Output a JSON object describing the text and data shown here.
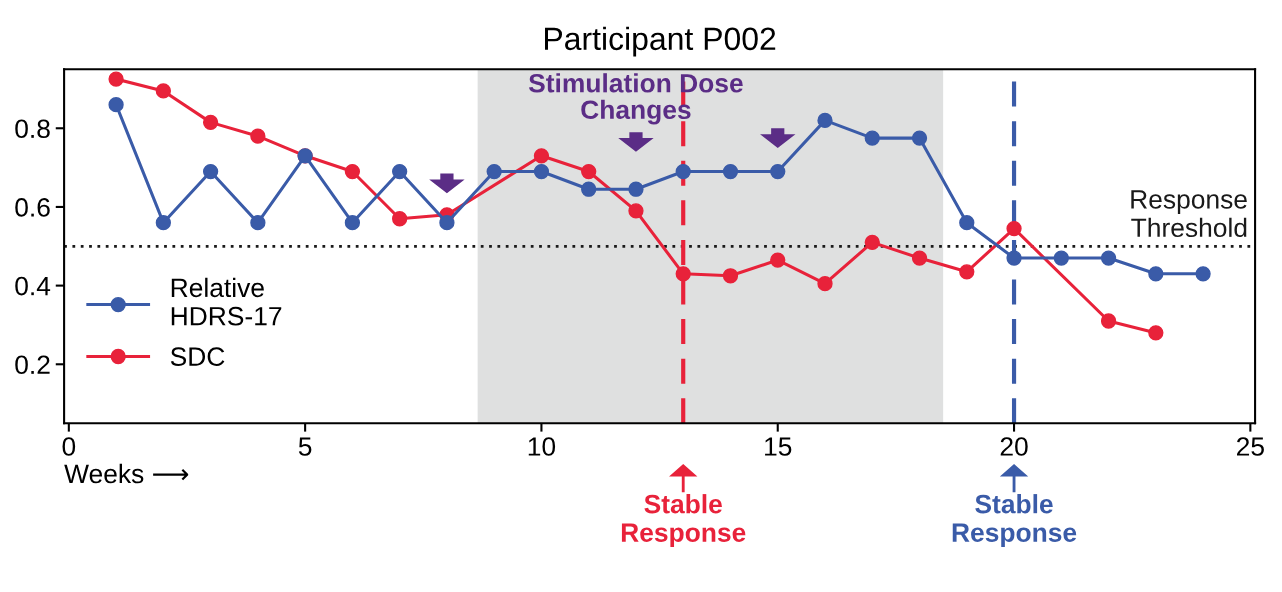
{
  "chart_data": {
    "type": "line",
    "title": "Participant P002",
    "xlabel": "Weeks ⟶",
    "x": [
      1,
      2,
      3,
      4,
      5,
      6,
      7,
      8,
      9,
      10,
      11,
      12,
      13,
      14,
      15,
      16,
      17,
      18,
      19,
      20,
      21,
      22,
      23,
      24
    ],
    "series": [
      {
        "name": "Relative\nHDRS-17",
        "color": "#3a5ba8",
        "values": [
          0.86,
          0.56,
          0.69,
          0.56,
          0.73,
          0.56,
          0.69,
          0.56,
          0.69,
          0.69,
          0.645,
          0.645,
          0.69,
          0.69,
          0.69,
          0.82,
          0.775,
          0.775,
          0.56,
          0.47,
          0.47,
          0.47,
          0.43,
          0.43
        ]
      },
      {
        "name": "SDC",
        "color": "#e8223a",
        "values": [
          0.925,
          0.895,
          0.815,
          0.78,
          0.73,
          0.69,
          0.57,
          0.58,
          null,
          0.73,
          0.69,
          0.59,
          0.43,
          0.425,
          0.465,
          0.405,
          0.51,
          0.47,
          0.435,
          0.545,
          null,
          0.31,
          0.28,
          null
        ]
      }
    ],
    "xlim": [
      -0.1,
      25.1
    ],
    "ylim": [
      0.05,
      0.95
    ],
    "xticks": [
      0,
      5,
      10,
      15,
      20,
      25
    ],
    "yticks": [
      0.2,
      0.4,
      0.6,
      0.8
    ],
    "ref_lines": [
      {
        "axis": "y",
        "value": 0.5,
        "label": "Response\nThreshold",
        "color": "#1a1a1a",
        "line_style": "dotted"
      },
      {
        "axis": "x",
        "value": 13,
        "label": "Stable\nResponse",
        "color": "#e8223a",
        "line_style": "dashed"
      },
      {
        "axis": "x",
        "value": 20,
        "label": "Stable\nResponse",
        "color": "#3a5ba8",
        "line_style": "dashed"
      }
    ],
    "bands": [
      {
        "axis": "x",
        "from": 8.65,
        "to": 18.5,
        "color": "#dfe0e0",
        "label": "Stimulation Dose\nChanges"
      }
    ],
    "marker": "circle",
    "line_style": "solid",
    "grid": false,
    "legend": "lower left"
  }
}
